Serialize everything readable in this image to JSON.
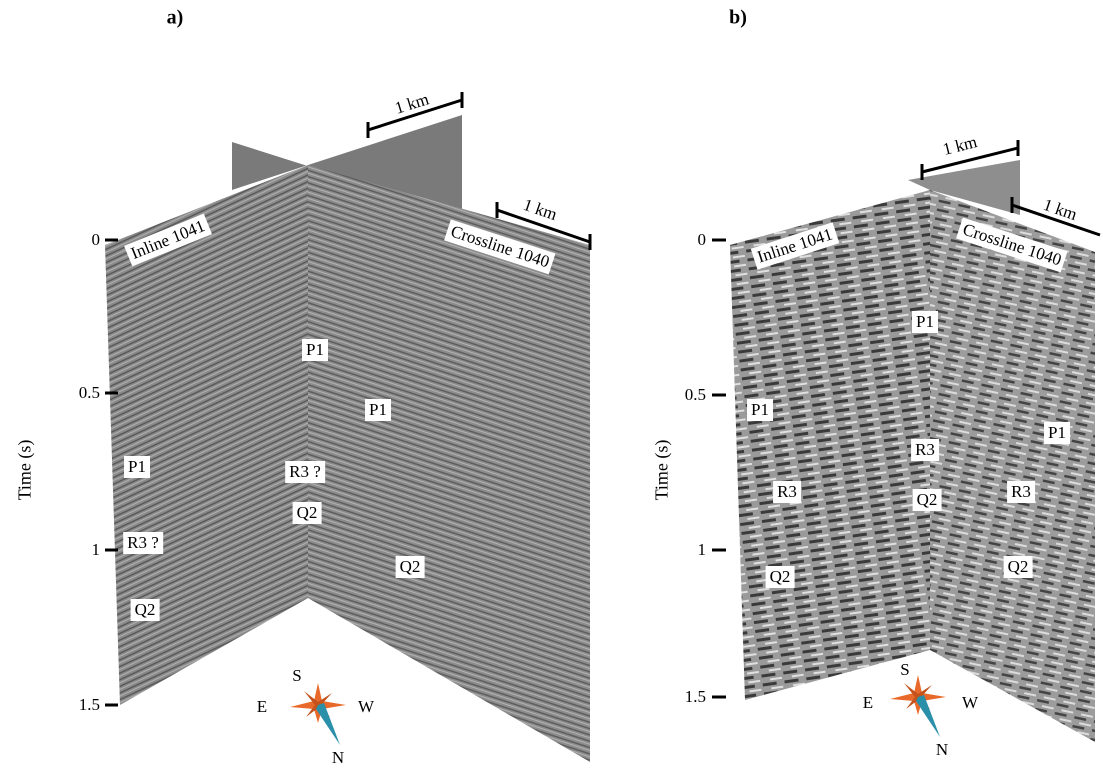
{
  "panels": [
    {
      "label": "a)",
      "axis_title": "Time (s)",
      "ticks": [
        "0",
        "0.5",
        "1",
        "1.5"
      ],
      "sections": [
        "Inline 1041",
        "Crossline 1040"
      ],
      "scale_bars": [
        "1 km",
        "1 km"
      ],
      "annotations": [
        "P1",
        "P1",
        "P1",
        "R3 ?",
        "Q2",
        "R3 ?",
        "Q2",
        "Q2"
      ],
      "compass": [
        "S",
        "E",
        "W",
        "N"
      ]
    },
    {
      "label": "b)",
      "axis_title": "Time (s)",
      "ticks": [
        "0",
        "0.5",
        "1",
        "1.5"
      ],
      "sections": [
        "Inline 1041",
        "Crossline 1040"
      ],
      "scale_bars": [
        "1 km",
        "1 km"
      ],
      "annotations": [
        "P1",
        "P1",
        "P1",
        "R3",
        "R3",
        "R3",
        "Q2",
        "Q2",
        "Q2"
      ],
      "compass": [
        "S",
        "E",
        "W",
        "N"
      ]
    }
  ]
}
